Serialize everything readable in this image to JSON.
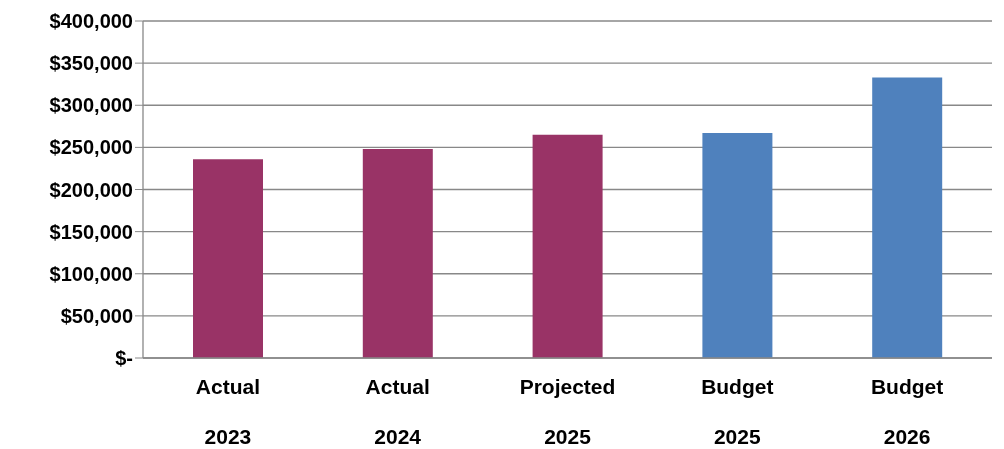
{
  "chart_data": {
    "type": "bar",
    "categories": [
      "Actual\n2023",
      "Actual\n2024",
      "Projected\n2025",
      "Budget\n2025",
      "Budget\n2026"
    ],
    "values": [
      236000,
      248000,
      265000,
      267000,
      333000
    ],
    "colors": [
      "#993366",
      "#993366",
      "#993366",
      "#4f81bd",
      "#4f81bd"
    ],
    "ylim": [
      0,
      400000
    ],
    "yticks": [
      {
        "value": 0,
        "label": "$-"
      },
      {
        "value": 50000,
        "label": "$50,000"
      },
      {
        "value": 100000,
        "label": "$100,000"
      },
      {
        "value": 150000,
        "label": "$150,000"
      },
      {
        "value": 200000,
        "label": "$200,000"
      },
      {
        "value": 250000,
        "label": "$250,000"
      },
      {
        "value": 300000,
        "label": "$300,000"
      },
      {
        "value": 350000,
        "label": "$350,000"
      },
      {
        "value": 400000,
        "label": "$400,000"
      }
    ],
    "grid": "y",
    "legend": false
  }
}
